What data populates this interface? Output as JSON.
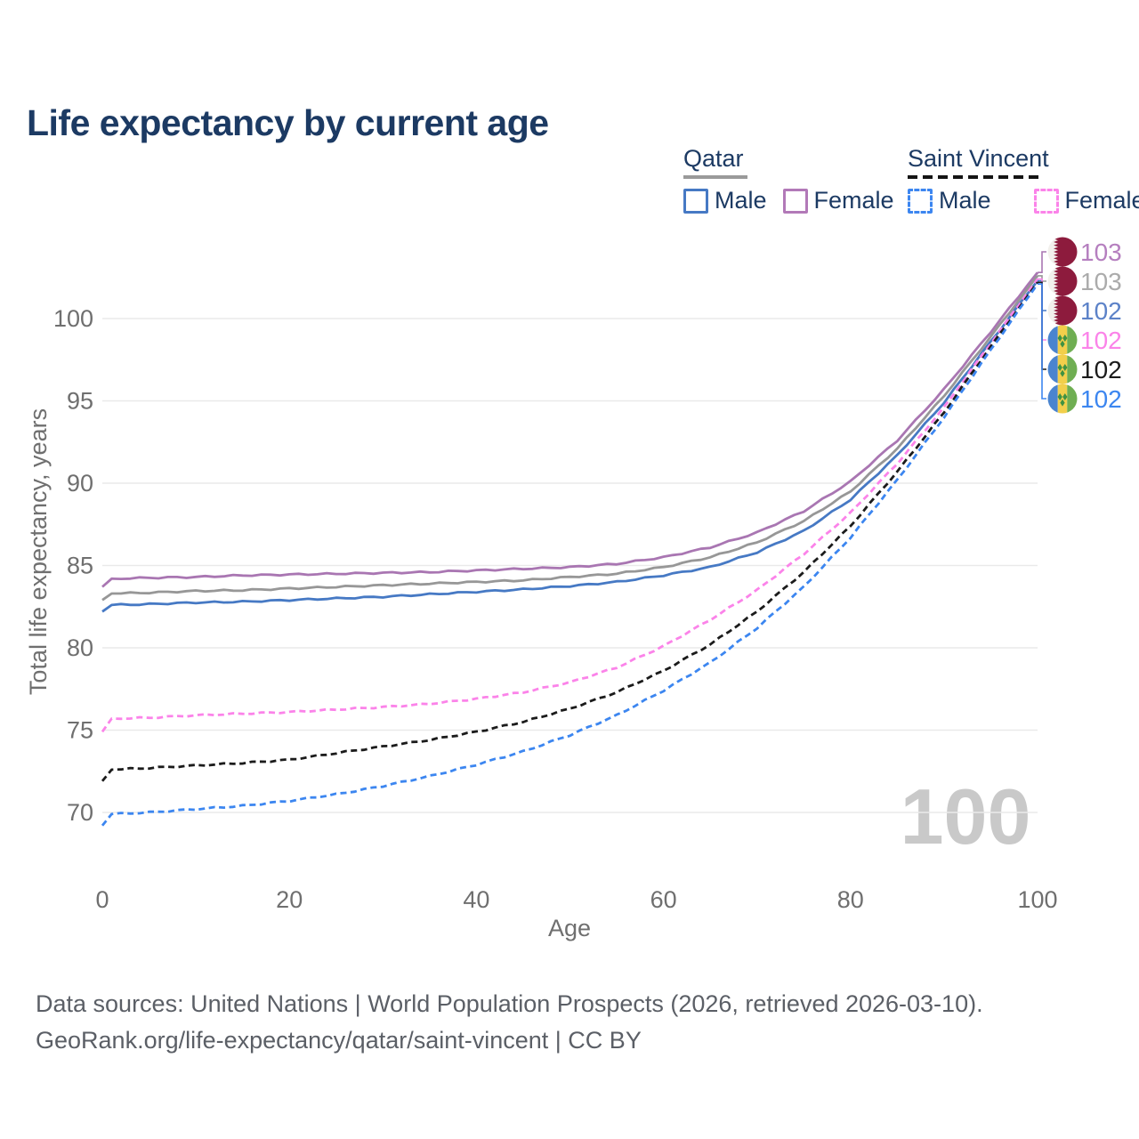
{
  "title": "Life expectancy by current age",
  "watermark": "100",
  "footer": {
    "line1": "Data sources: United Nations | World Population Prospects (2026, retrieved 2026-03-10).",
    "line2": "GeoRank.org/life-expectancy/qatar/saint-vincent | CC BY"
  },
  "legend": {
    "groups": [
      {
        "name": "Qatar",
        "underline_style": "solid",
        "underline_color": "#9a9a9a",
        "items": [
          {
            "label": "Male",
            "swatch_color": "#4679c4",
            "dashed": false
          },
          {
            "label": "Female",
            "swatch_color": "#b279b8",
            "dashed": false
          }
        ]
      },
      {
        "name": "Saint Vincent",
        "underline_style": "dashed",
        "underline_color": "#141414",
        "items": [
          {
            "label": "Male",
            "swatch_color": "#3c86f0",
            "dashed": true
          },
          {
            "label": "Female",
            "swatch_color": "#fb83e9",
            "dashed": true
          }
        ]
      }
    ]
  },
  "chart_data": {
    "type": "line",
    "title": "Life expectancy by current age",
    "xlabel": "Age",
    "ylabel": "Total life expectancy, years",
    "xlim": [
      0,
      100
    ],
    "ylim": [
      69,
      103.5
    ],
    "x_ticks": [
      0,
      20,
      40,
      60,
      80,
      100
    ],
    "y_ticks": [
      70,
      75,
      80,
      85,
      90,
      95,
      100
    ],
    "grid": "horizontal",
    "legend_position": "top-right",
    "x": [
      0,
      1,
      5,
      10,
      15,
      20,
      25,
      30,
      35,
      40,
      45,
      50,
      55,
      60,
      65,
      70,
      75,
      80,
      85,
      90,
      95,
      100
    ],
    "series": [
      {
        "name": "Qatar Female",
        "country": "Qatar",
        "sex": "Female",
        "style": "solid",
        "color": "#a976b2",
        "label_color": "#b57fbf",
        "flag": "qatar",
        "end_label": "103",
        "values": [
          83.7,
          84.2,
          84.25,
          84.3,
          84.4,
          84.45,
          84.5,
          84.55,
          84.6,
          84.7,
          84.8,
          84.9,
          85.1,
          85.5,
          86.1,
          87.0,
          88.3,
          90.1,
          92.6,
          95.7,
          99.2,
          102.8
        ]
      },
      {
        "name": "Qatar Both sexes",
        "country": "Qatar",
        "sex": "Both",
        "style": "solid",
        "color": "#979797",
        "label_color": "#ababab",
        "flag": "qatar",
        "end_label": "103",
        "values": [
          82.9,
          83.3,
          83.35,
          83.45,
          83.5,
          83.6,
          83.7,
          83.8,
          83.9,
          84.0,
          84.1,
          84.3,
          84.5,
          84.9,
          85.5,
          86.4,
          87.7,
          89.5,
          92.1,
          95.3,
          98.9,
          102.6
        ]
      },
      {
        "name": "Qatar Male",
        "country": "Qatar",
        "sex": "Male",
        "style": "solid",
        "color": "#4679c4",
        "label_color": "#5c82c8",
        "flag": "qatar",
        "end_label": "102",
        "values": [
          82.2,
          82.6,
          82.65,
          82.75,
          82.8,
          82.9,
          83.0,
          83.1,
          83.25,
          83.4,
          83.55,
          83.75,
          84.0,
          84.4,
          84.9,
          85.8,
          87.1,
          89.0,
          91.7,
          94.9,
          98.6,
          102.3
        ]
      },
      {
        "name": "Saint Vincent Female",
        "country": "Saint Vincent",
        "sex": "Female",
        "style": "dashed",
        "color": "#fb83e9",
        "label_color": "#fb83e9",
        "flag": "saint-vincent",
        "end_label": "102",
        "values": [
          74.9,
          75.7,
          75.75,
          75.9,
          76.0,
          76.1,
          76.25,
          76.4,
          76.6,
          76.9,
          77.3,
          77.9,
          78.8,
          80.1,
          81.7,
          83.5,
          85.7,
          88.2,
          91.2,
          94.6,
          98.5,
          102.4
        ]
      },
      {
        "name": "Saint Vincent Both sexes",
        "country": "Saint Vincent",
        "sex": "Both",
        "style": "dashed",
        "color": "#1b1b1b",
        "label_color": "#1b1b1b",
        "flag": "saint-vincent",
        "end_label": "102",
        "values": [
          71.9,
          72.6,
          72.7,
          72.85,
          73.0,
          73.2,
          73.6,
          74.0,
          74.4,
          74.9,
          75.5,
          76.3,
          77.3,
          78.6,
          80.2,
          82.2,
          84.6,
          87.4,
          90.7,
          94.3,
          98.3,
          102.2
        ]
      },
      {
        "name": "Saint Vincent Male",
        "country": "Saint Vincent",
        "sex": "Male",
        "style": "dashed",
        "color": "#3c86f0",
        "label_color": "#3c86f0",
        "flag": "saint-vincent",
        "end_label": "102",
        "values": [
          69.2,
          69.9,
          70.0,
          70.2,
          70.4,
          70.7,
          71.1,
          71.6,
          72.2,
          72.9,
          73.7,
          74.7,
          75.9,
          77.4,
          79.1,
          81.2,
          83.7,
          86.7,
          90.2,
          94.0,
          98.1,
          102.1
        ]
      }
    ]
  }
}
